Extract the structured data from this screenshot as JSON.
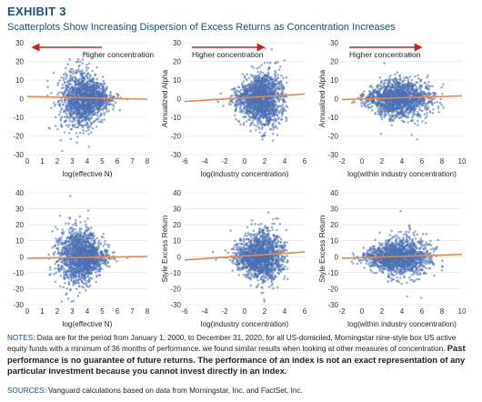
{
  "header": {
    "exhibit": "EXHIBIT 3",
    "subtitle": "Scatterplots Show Increasing Dispersion of Excess Returns as Concentration Increases"
  },
  "footer": {
    "notes_label": "NOTES:",
    "notes_text": "Data are for the period from January 1, 2000, to December 31, 2020, for all US-domiciled, Morningstar nine-style box US active equity funds with a minimum of 36 months of performance. we found similar results when looking at other measures of concentration.",
    "notes_bold": "Past performance is no guarantee of future returns. The performance of an index is not an exact representation of any particular investment because you cannot invest directly in an index.",
    "sources_label": "SOURCES:",
    "sources_text": "Vanguard calculations based on data from Morningstar, Inc. and FactSet, Inc."
  },
  "colors": {
    "points": "#4a6fb3",
    "trend": "#e8884a",
    "arrow": "#cc2222",
    "accent": "#1f4e79"
  },
  "chart_data": [
    {
      "type": "scatter",
      "xlabel": "log(effective N)",
      "ylabel": "",
      "xlim": [
        0,
        8
      ],
      "ylim": [
        -30,
        30
      ],
      "xticks": [
        0,
        1,
        2,
        3,
        4,
        5,
        6,
        7,
        8
      ],
      "yticks": [
        30,
        20,
        10,
        0,
        -10,
        -20,
        -30
      ],
      "annotation": "Higher concentration",
      "arrow_direction": "left",
      "trend": {
        "x": [
          0,
          8
        ],
        "y": [
          1.2,
          -0.3
        ]
      },
      "cloud": {
        "x_center": 3.8,
        "x_spread": 0.8,
        "x_min": 1.2,
        "x_max": 6.9,
        "y_spread_low_x": 11,
        "y_spread_high_x": 2
      }
    },
    {
      "type": "scatter",
      "xlabel": "log(industry concentration)",
      "ylabel": "Annualized Alpha",
      "xlim": [
        -6,
        6
      ],
      "ylim": [
        -30,
        30
      ],
      "xticks": [
        -6,
        -4,
        -2,
        0,
        2,
        4,
        6
      ],
      "yticks": [
        30,
        20,
        10,
        0,
        -10,
        -20,
        -30
      ],
      "annotation": "Higher concentration",
      "arrow_direction": "right",
      "trend": {
        "x": [
          -6,
          6
        ],
        "y": [
          -1.5,
          2.5
        ]
      },
      "cloud": {
        "x_center": 1.6,
        "x_spread": 1.2,
        "x_min": -4.8,
        "x_max": 4.3,
        "y_spread_low_x": 2,
        "y_spread_high_x": 9
      }
    },
    {
      "type": "scatter",
      "xlabel": "log(within industry concentration)",
      "ylabel": "Annualized Alpha",
      "xlim": [
        -2,
        10
      ],
      "ylim": [
        -30,
        30
      ],
      "xticks": [
        -2,
        0,
        2,
        4,
        6,
        8,
        10
      ],
      "yticks": [
        30,
        20,
        10,
        0,
        -10,
        -20,
        -30
      ],
      "annotation": "Higher concentration",
      "arrow_direction": "right",
      "trend": {
        "x": [
          -2,
          10
        ],
        "y": [
          -0.5,
          1.5
        ]
      },
      "cloud": {
        "x_center": 3.6,
        "x_spread": 1.6,
        "x_min": -1.4,
        "x_max": 8.2,
        "y_spread_low_x": 3,
        "y_spread_high_x": 7
      }
    },
    {
      "type": "scatter",
      "xlabel": "log(effective N)",
      "ylabel": "",
      "xlim": [
        0,
        8
      ],
      "ylim": [
        -30,
        40
      ],
      "xticks": [
        0,
        1,
        2,
        3,
        4,
        5,
        6,
        7,
        8
      ],
      "yticks": [
        40,
        30,
        20,
        10,
        0,
        -10,
        -20,
        -30
      ],
      "annotation": "",
      "arrow_direction": "",
      "trend": {
        "x": [
          0,
          8
        ],
        "y": [
          -1.0,
          0.2
        ]
      },
      "cloud": {
        "x_center": 3.6,
        "x_spread": 0.8,
        "x_min": 1.4,
        "x_max": 6.8,
        "y_spread_low_x": 12,
        "y_spread_high_x": 2.5
      }
    },
    {
      "type": "scatter",
      "xlabel": "log(industry concentration)",
      "ylabel": "Style Excess Return",
      "xlim": [
        -6,
        6
      ],
      "ylim": [
        -30,
        40
      ],
      "xticks": [
        -6,
        -4,
        -2,
        0,
        2,
        4,
        6
      ],
      "yticks": [
        40,
        30,
        20,
        10,
        0,
        -10,
        -20,
        -30
      ],
      "annotation": "",
      "arrow_direction": "",
      "trend": {
        "x": [
          -6,
          6
        ],
        "y": [
          -2.0,
          3.0
        ]
      },
      "cloud": {
        "x_center": 1.6,
        "x_spread": 1.2,
        "x_min": -4.8,
        "x_max": 4.3,
        "y_spread_low_x": 2,
        "y_spread_high_x": 10
      }
    },
    {
      "type": "scatter",
      "xlabel": "log(within industry concentration)",
      "ylabel": "Style Excess Return",
      "xlim": [
        -2,
        10
      ],
      "ylim": [
        -30,
        40
      ],
      "xticks": [
        -2,
        0,
        2,
        4,
        6,
        8,
        10
      ],
      "yticks": [
        40,
        30,
        20,
        10,
        0,
        -10,
        -20,
        -30
      ],
      "annotation": "",
      "arrow_direction": "",
      "trend": {
        "x": [
          -2,
          10
        ],
        "y": [
          -1.0,
          1.5
        ]
      },
      "cloud": {
        "x_center": 3.6,
        "x_spread": 1.6,
        "x_min": -1.4,
        "x_max": 8.2,
        "y_spread_low_x": 3,
        "y_spread_high_x": 8
      }
    }
  ]
}
